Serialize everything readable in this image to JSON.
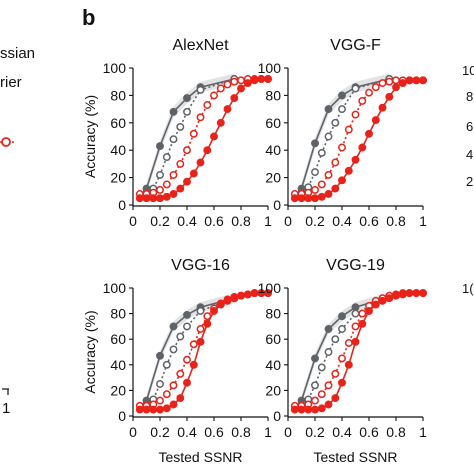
{
  "left_fragment": {
    "legend_fragments": [
      "ssian",
      "rier"
    ],
    "axis_tick_fragment": "1"
  },
  "panel_label": "b",
  "right_fragment": {
    "row1_ticks": [
      "10",
      "8",
      "6",
      "4",
      "2"
    ],
    "row2_ticks": [
      "1("
    ]
  },
  "colors": {
    "gray": "#5f6368",
    "gray_band": "#d5d7da",
    "red": "#e8231a",
    "axis": "#111111"
  },
  "chart_data": [
    {
      "type": "line",
      "title": "AlexNet",
      "xlabel": "",
      "ylabel": "Accuracy (%)",
      "xlim": [
        0,
        1
      ],
      "ylim": [
        0,
        100
      ],
      "xticks": [
        "0",
        "0.2",
        "0.4",
        "0.6",
        "0.8",
        "1"
      ],
      "yticks": [
        "0",
        "20",
        "40",
        "60",
        "80",
        "100"
      ],
      "series": [
        {
          "style": "gray-filled-solid",
          "x": [
            0.1,
            0.2,
            0.3,
            0.4,
            0.5,
            0.75
          ],
          "y": [
            12,
            43,
            68,
            78,
            86,
            92
          ]
        },
        {
          "style": "gray-open-dotted",
          "x": [
            0.1,
            0.15,
            0.2,
            0.25,
            0.3,
            0.35,
            0.4,
            0.5,
            0.75
          ],
          "y": [
            9,
            12,
            22,
            35,
            48,
            57,
            68,
            84,
            92
          ]
        },
        {
          "style": "red-open-dotted",
          "x": [
            0.05,
            0.1,
            0.15,
            0.2,
            0.25,
            0.3,
            0.35,
            0.4,
            0.45,
            0.5,
            0.55,
            0.6,
            0.65,
            0.7,
            0.75,
            0.8,
            0.85,
            0.9,
            0.95,
            1.0
          ],
          "y": [
            8,
            8,
            9,
            11,
            15,
            22,
            30,
            40,
            52,
            64,
            73,
            80,
            85,
            88,
            90,
            91,
            92,
            92,
            92,
            92
          ]
        },
        {
          "style": "red-filled-solid",
          "x": [
            0.05,
            0.1,
            0.15,
            0.2,
            0.25,
            0.3,
            0.35,
            0.4,
            0.45,
            0.5,
            0.55,
            0.6,
            0.65,
            0.7,
            0.75,
            0.8,
            0.85,
            0.9,
            0.95,
            1.0
          ],
          "y": [
            5,
            5,
            5,
            5,
            6,
            8,
            12,
            17,
            23,
            31,
            40,
            50,
            60,
            70,
            78,
            85,
            89,
            91,
            92,
            92
          ]
        }
      ]
    },
    {
      "type": "line",
      "title": "VGG-F",
      "xlabel": "",
      "ylabel": "",
      "xlim": [
        0,
        1
      ],
      "ylim": [
        0,
        100
      ],
      "xticks": [
        "0",
        "0.2",
        "0.4",
        "0.6",
        "0.8",
        "1"
      ],
      "yticks": [
        "0",
        "20",
        "40",
        "60",
        "80",
        "100"
      ],
      "series": [
        {
          "style": "gray-filled-solid",
          "x": [
            0.1,
            0.2,
            0.3,
            0.4,
            0.5,
            0.75
          ],
          "y": [
            12,
            45,
            70,
            80,
            86,
            92
          ]
        },
        {
          "style": "gray-open-dotted",
          "x": [
            0.1,
            0.15,
            0.2,
            0.25,
            0.3,
            0.35,
            0.4,
            0.5,
            0.75
          ],
          "y": [
            9,
            13,
            24,
            38,
            50,
            60,
            70,
            85,
            92
          ]
        },
        {
          "style": "red-open-dotted",
          "x": [
            0.05,
            0.1,
            0.15,
            0.2,
            0.25,
            0.3,
            0.35,
            0.4,
            0.45,
            0.5,
            0.55,
            0.6,
            0.65,
            0.7,
            0.75,
            0.8,
            0.85,
            0.9,
            0.95,
            1.0
          ],
          "y": [
            8,
            8,
            9,
            11,
            15,
            22,
            31,
            42,
            55,
            66,
            76,
            82,
            86,
            89,
            90,
            91,
            91,
            91,
            91,
            91
          ]
        },
        {
          "style": "red-filled-solid",
          "x": [
            0.05,
            0.1,
            0.15,
            0.2,
            0.25,
            0.3,
            0.35,
            0.4,
            0.45,
            0.5,
            0.55,
            0.6,
            0.65,
            0.7,
            0.75,
            0.8,
            0.85,
            0.9,
            0.95,
            1.0
          ],
          "y": [
            5,
            5,
            5,
            5,
            6,
            8,
            12,
            18,
            25,
            33,
            42,
            52,
            62,
            71,
            79,
            86,
            89,
            91,
            91,
            91
          ]
        }
      ]
    },
    {
      "type": "line",
      "title": "VGG-16",
      "xlabel": "Tested SSNR",
      "ylabel": "Accuracy (%)",
      "xlim": [
        0,
        1
      ],
      "ylim": [
        0,
        100
      ],
      "xticks": [
        "0",
        "0.2",
        "0.4",
        "0.6",
        "0.8",
        "1"
      ],
      "yticks": [
        "0",
        "20",
        "40",
        "60",
        "80",
        "100"
      ],
      "series": [
        {
          "style": "gray-filled-solid",
          "x": [
            0.1,
            0.2,
            0.3,
            0.4,
            0.5,
            0.75
          ],
          "y": [
            12,
            47,
            70,
            79,
            85,
            92
          ]
        },
        {
          "style": "gray-open-dotted",
          "x": [
            0.1,
            0.15,
            0.2,
            0.25,
            0.3,
            0.35,
            0.4,
            0.5,
            0.75
          ],
          "y": [
            9,
            13,
            25,
            40,
            52,
            62,
            70,
            82,
            92
          ]
        },
        {
          "style": "red-open-dotted",
          "x": [
            0.05,
            0.1,
            0.15,
            0.2,
            0.25,
            0.3,
            0.35,
            0.4,
            0.45,
            0.5,
            0.55,
            0.6,
            0.65,
            0.7,
            0.75,
            0.8,
            0.85,
            0.9,
            0.95,
            1.0
          ],
          "y": [
            8,
            8,
            9,
            12,
            17,
            24,
            33,
            44,
            56,
            68,
            78,
            84,
            88,
            91,
            93,
            94,
            95,
            96,
            96,
            96
          ]
        },
        {
          "style": "red-filled-solid",
          "x": [
            0.05,
            0.1,
            0.15,
            0.2,
            0.25,
            0.3,
            0.35,
            0.4,
            0.45,
            0.5,
            0.55,
            0.6,
            0.65,
            0.7,
            0.75,
            0.8,
            0.85,
            0.9,
            0.95,
            1.0
          ],
          "y": [
            5,
            5,
            5,
            5,
            6,
            9,
            14,
            26,
            40,
            58,
            72,
            82,
            87,
            90,
            92,
            94,
            95,
            96,
            96,
            96
          ]
        }
      ]
    },
    {
      "type": "line",
      "title": "VGG-19",
      "xlabel": "Tested SSNR",
      "ylabel": "",
      "xlim": [
        0,
        1
      ],
      "ylim": [
        0,
        100
      ],
      "xticks": [
        "0",
        "0.2",
        "0.4",
        "0.6",
        "0.8",
        "1"
      ],
      "yticks": [
        "0",
        "20",
        "40",
        "60",
        "80",
        "100"
      ],
      "series": [
        {
          "style": "gray-filled-solid",
          "x": [
            0.1,
            0.2,
            0.3,
            0.4,
            0.5,
            0.75
          ],
          "y": [
            12,
            45,
            68,
            78,
            85,
            93
          ]
        },
        {
          "style": "gray-open-dotted",
          "x": [
            0.1,
            0.15,
            0.2,
            0.25,
            0.3,
            0.35,
            0.4,
            0.5,
            0.75
          ],
          "y": [
            9,
            13,
            24,
            38,
            50,
            60,
            68,
            80,
            93
          ]
        },
        {
          "style": "red-open-dotted",
          "x": [
            0.05,
            0.1,
            0.15,
            0.2,
            0.25,
            0.3,
            0.35,
            0.4,
            0.45,
            0.5,
            0.55,
            0.6,
            0.65,
            0.7,
            0.75,
            0.8,
            0.85,
            0.9,
            0.95,
            1.0
          ],
          "y": [
            8,
            8,
            9,
            12,
            17,
            24,
            33,
            45,
            57,
            70,
            80,
            86,
            90,
            92,
            94,
            95,
            96,
            96,
            96,
            96
          ]
        },
        {
          "style": "red-filled-solid",
          "x": [
            0.05,
            0.1,
            0.15,
            0.2,
            0.25,
            0.3,
            0.35,
            0.4,
            0.45,
            0.5,
            0.55,
            0.6,
            0.65,
            0.7,
            0.75,
            0.8,
            0.85,
            0.9,
            0.95,
            1.0
          ],
          "y": [
            5,
            5,
            5,
            5,
            6,
            9,
            14,
            26,
            40,
            58,
            72,
            82,
            87,
            90,
            92,
            94,
            95,
            96,
            96,
            96
          ]
        }
      ]
    }
  ]
}
